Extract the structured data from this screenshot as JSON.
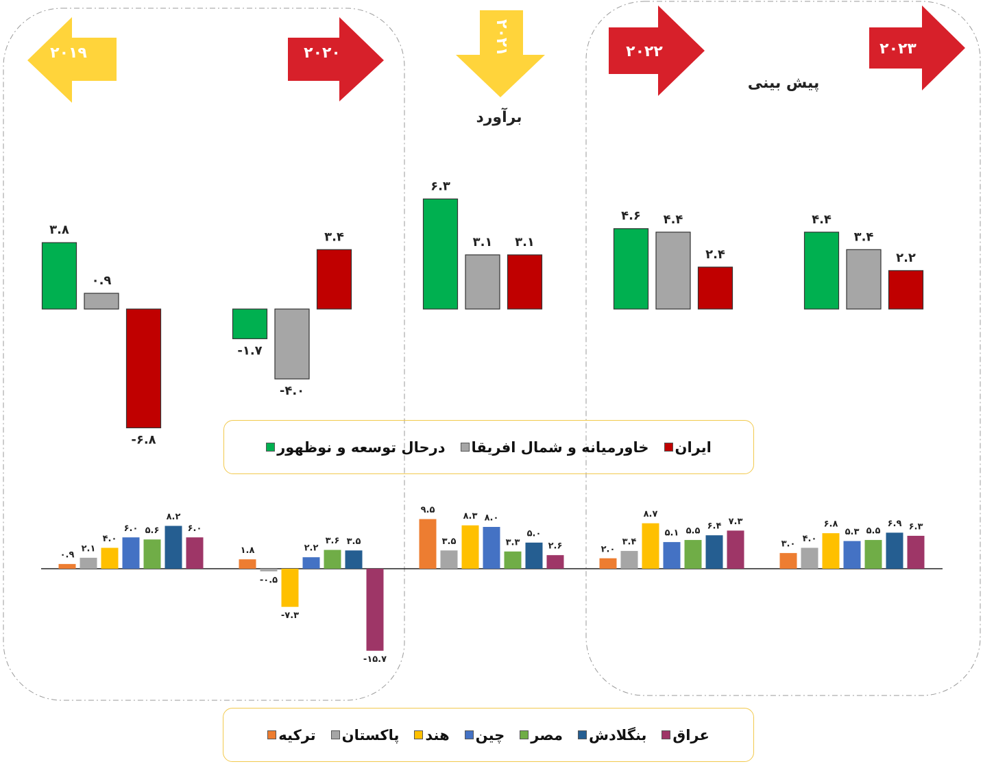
{
  "chart_data": [
    {
      "type": "bar",
      "categories": [
        "۲۰۱۹",
        "۲۰۲۰",
        "۲۰۲۱",
        "۲۰۲۲",
        "۲۰۲۳"
      ],
      "annotations": [
        "برآورد",
        "پیش بینی"
      ],
      "ylim": [
        -8,
        8
      ],
      "series": [
        {
          "name": "درحال توسعه و نوظهور",
          "color": "#00b050",
          "values": [
            3.8,
            -1.7,
            6.3,
            4.6,
            4.4
          ],
          "value_labels": [
            "۳.۸",
            "-۱.۷",
            "۶.۳",
            "۴.۶",
            "۴.۴"
          ]
        },
        {
          "name": "خاورمیانه و شمال افریقا",
          "color": "#a6a6a6",
          "values": [
            0.9,
            -4.0,
            3.1,
            4.4,
            3.4
          ],
          "value_labels": [
            "۰.۹",
            "-۴.۰",
            "۳.۱",
            "۴.۴",
            "۳.۴"
          ]
        },
        {
          "name": "ایران",
          "color": "#c00000",
          "values": [
            -6.8,
            3.4,
            3.1,
            2.4,
            2.2
          ],
          "value_labels": [
            "-۶.۸",
            "۳.۴",
            "۳.۱",
            "۲.۴",
            "۲.۲"
          ]
        }
      ]
    },
    {
      "type": "bar",
      "ylim": [
        -16,
        16
      ],
      "series": [
        {
          "name": "ترکیه",
          "color": "#ed7d31",
          "values": [
            0.9,
            1.8,
            9.5,
            2.0,
            3.0
          ],
          "value_labels": [
            "۰.۹",
            "۱.۸",
            "۹.۵",
            "۲.۰",
            "۳.۰"
          ]
        },
        {
          "name": "پاکستان",
          "color": "#a6a6a6",
          "values": [
            2.1,
            -0.5,
            3.5,
            3.4,
            4.0
          ],
          "value_labels": [
            "۲.۱",
            "-۰.۵",
            "۳.۵",
            "۳.۴",
            "۴.۰"
          ]
        },
        {
          "name": "هند",
          "color": "#ffc000",
          "values": [
            4.0,
            -7.3,
            8.3,
            8.7,
            6.8
          ],
          "value_labels": [
            "۴.۰",
            "-۷.۳",
            "۸.۳",
            "۸.۷",
            "۶.۸"
          ]
        },
        {
          "name": "چین",
          "color": "#4472c4",
          "values": [
            6.0,
            2.2,
            8.0,
            5.1,
            5.3
          ],
          "value_labels": [
            "۶.۰",
            "۲.۲",
            "۸.۰",
            "۵.۱",
            "۵.۳"
          ]
        },
        {
          "name": "مصر",
          "color": "#70ad47",
          "values": [
            5.6,
            3.6,
            3.3,
            5.5,
            5.5
          ],
          "value_labels": [
            "۵.۶",
            "۳.۶",
            "۳.۳",
            "۵.۵",
            "۵.۵"
          ]
        },
        {
          "name": "بنگلادش",
          "color": "#255e91",
          "values": [
            8.2,
            3.5,
            5.0,
            6.4,
            6.9
          ],
          "value_labels": [
            "۸.۲",
            "۳.۵",
            "۵.۰",
            "۶.۴",
            "۶.۹"
          ]
        },
        {
          "name": "عراق",
          "color": "#9e3667",
          "values": [
            6.0,
            -15.7,
            2.6,
            7.3,
            6.3
          ],
          "value_labels": [
            "۶.۰",
            "-۱۵.۷",
            "۲.۶",
            "۷.۳",
            "۶.۳"
          ]
        }
      ]
    }
  ]
}
